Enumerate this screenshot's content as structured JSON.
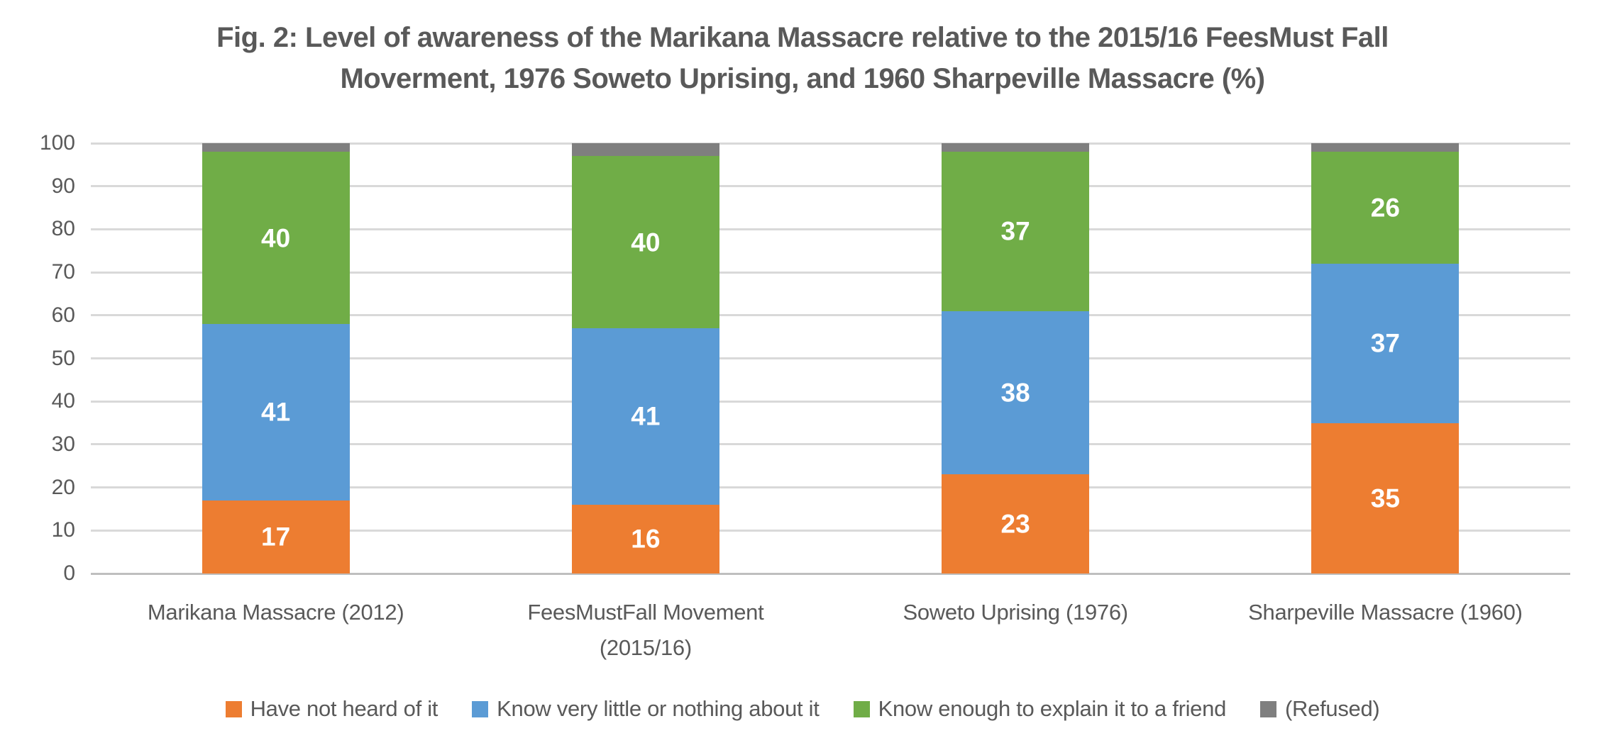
{
  "figure": {
    "title_line1": "Fig. 2: Level of awareness of the Marikana Massacre relative to the 2015/16 FeesMust Fall",
    "title_line2": "Moverment, 1976 Soweto Uprising, and 1960 Sharpeville Massacre (%)"
  },
  "chart_data": {
    "type": "bar",
    "stacked": true,
    "title": "Fig. 2: Level of awareness of the Marikana Massacre relative to the 2015/16 FeesMust Fall Moverment, 1976 Soweto Uprising, and 1960 Sharpeville Massacre (%)",
    "categories": [
      "Marikana Massacre (2012)",
      "FeesMustFall Movement (2015/16)",
      "Soweto Uprising (1976)",
      "Sharpeville Massacre (1960)"
    ],
    "category_label_lines": [
      [
        "Marikana Massacre (2012)"
      ],
      [
        "FeesMustFall Movement",
        "(2015/16)"
      ],
      [
        "Soweto Uprising (1976)"
      ],
      [
        "Sharpeville Massacre (1960)"
      ]
    ],
    "series": [
      {
        "name": "Have not heard of it",
        "color": "#ED7D31",
        "values": [
          17,
          16,
          23,
          35
        ],
        "show_labels": true
      },
      {
        "name": "Know very little or nothing about it",
        "color": "#5B9BD5",
        "values": [
          41,
          41,
          38,
          37
        ],
        "show_labels": true
      },
      {
        "name": "Know enough to explain it to a friend",
        "color": "#70AD47",
        "values": [
          40,
          40,
          37,
          26
        ],
        "show_labels": true
      },
      {
        "name": "(Refused)",
        "color": "#7F7F7F",
        "values": [
          2,
          3,
          2,
          2
        ],
        "show_labels": false
      }
    ],
    "ylim": [
      0,
      100
    ],
    "yticks": [
      0,
      10,
      20,
      30,
      40,
      50,
      60,
      70,
      80,
      90,
      100
    ],
    "grid": "horizontal",
    "legend_position": "bottom",
    "data_label_color": "#FFFFFF"
  },
  "colors": {
    "text": "#595959",
    "gridline": "#D9D9D9",
    "axis_line": "#BFBFBF",
    "background": "#FFFFFF"
  }
}
